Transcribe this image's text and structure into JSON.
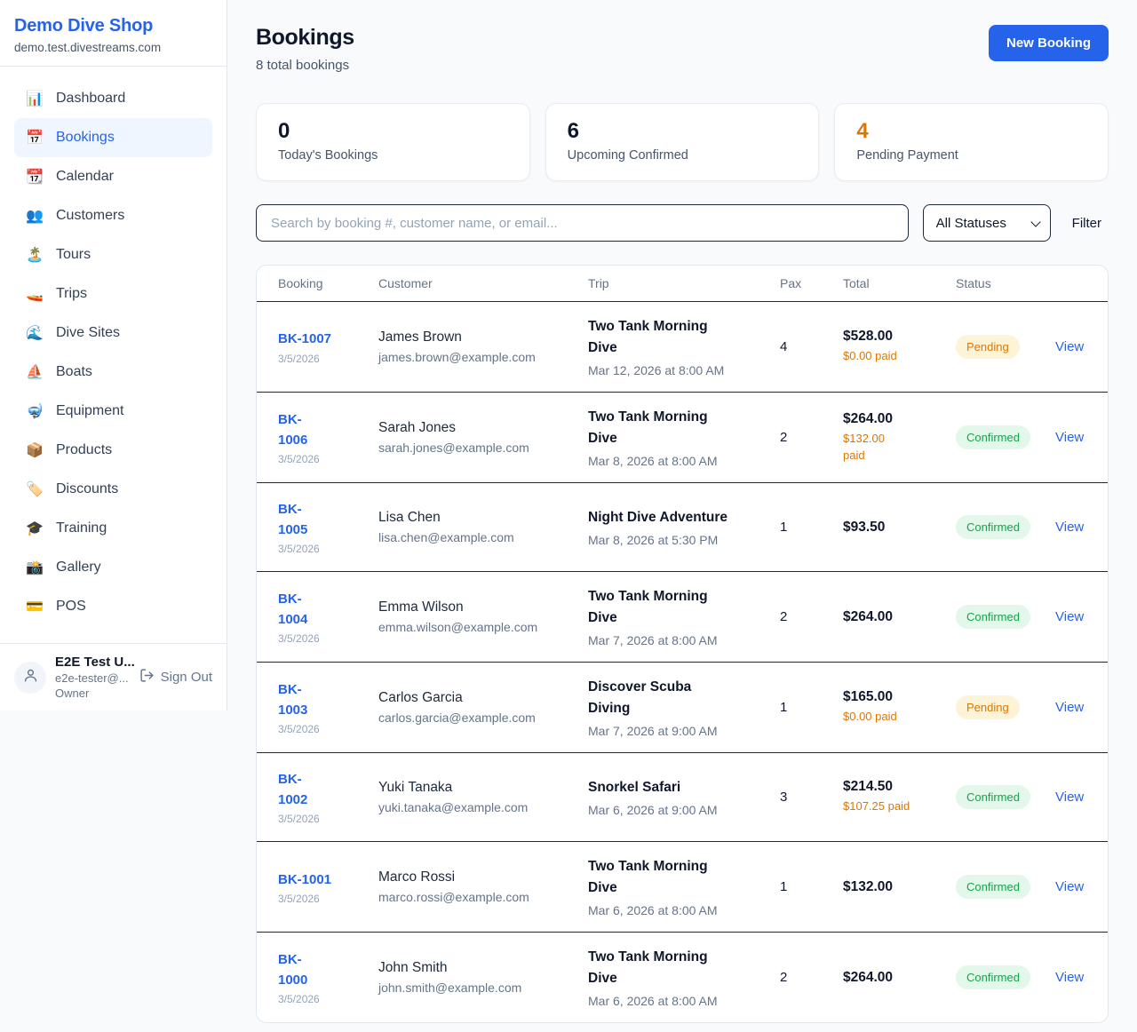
{
  "brand": {
    "name": "Demo Dive Shop",
    "domain": "demo.test.divestreams.com"
  },
  "sidebar": {
    "items": [
      {
        "label": "Dashboard",
        "icon": "bar-chart-icon",
        "glyph": "📊",
        "active": false
      },
      {
        "label": "Bookings",
        "icon": "calendar-icon",
        "glyph": "📅",
        "active": true
      },
      {
        "label": "Calendar",
        "icon": "tear-off-calendar-icon",
        "glyph": "📆",
        "active": false
      },
      {
        "label": "Customers",
        "icon": "people-icon",
        "glyph": "👥",
        "active": false
      },
      {
        "label": "Tours",
        "icon": "island-icon",
        "glyph": "🏝️",
        "active": false
      },
      {
        "label": "Trips",
        "icon": "speedboat-icon",
        "glyph": "🚤",
        "active": false
      },
      {
        "label": "Dive Sites",
        "icon": "wave-icon",
        "glyph": "🌊",
        "active": false
      },
      {
        "label": "Boats",
        "icon": "sailboat-icon",
        "glyph": "⛵",
        "active": false
      },
      {
        "label": "Equipment",
        "icon": "diving-mask-icon",
        "glyph": "🤿",
        "active": false
      },
      {
        "label": "Products",
        "icon": "package-icon",
        "glyph": "📦",
        "active": false
      },
      {
        "label": "Discounts",
        "icon": "tag-icon",
        "glyph": "🏷️",
        "active": false
      },
      {
        "label": "Training",
        "icon": "graduation-cap-icon",
        "glyph": "🎓",
        "active": false
      },
      {
        "label": "Gallery",
        "icon": "camera-flash-icon",
        "glyph": "📸",
        "active": false
      },
      {
        "label": "POS",
        "icon": "credit-card-icon",
        "glyph": "💳",
        "active": false
      }
    ],
    "user": {
      "name": "E2E Test U...",
      "email": "e2e-tester@...",
      "role": "Owner",
      "signout_label": "Sign Out"
    }
  },
  "header": {
    "title": "Bookings",
    "subtitle": "8 total bookings",
    "new_booking_label": "New Booking"
  },
  "stats": [
    {
      "value": "0",
      "label": "Today's Bookings",
      "color": "#0f172a"
    },
    {
      "value": "6",
      "label": "Upcoming Confirmed",
      "color": "#0f172a"
    },
    {
      "value": "4",
      "label": "Pending Payment",
      "color": "#d97706"
    }
  ],
  "filters": {
    "search_placeholder": "Search by booking #, customer name, or email...",
    "status_selected": "All Statuses",
    "filter_label": "Filter"
  },
  "table": {
    "columns": [
      "Booking",
      "Customer",
      "Trip",
      "Pax",
      "Total",
      "Status"
    ],
    "view_label": "View",
    "rows": [
      {
        "id": "BK-1007",
        "id_display": "BK-1007",
        "date": "3/5/2026",
        "customer": "James Brown",
        "email": "james.brown@example.com",
        "trip": "Two Tank Morning Dive",
        "trip_display": "Two Tank Morning\nDive",
        "trip_date": "Mar 12, 2026 at 8:00 AM",
        "pax": "4",
        "total": "$528.00",
        "paid": "$0.00 paid",
        "paid_display": "$0.00 paid",
        "status": "Pending"
      },
      {
        "id": "BK-1006",
        "id_display": "BK-\n1006",
        "date": "3/5/2026",
        "customer": "Sarah Jones",
        "email": "sarah.jones@example.com",
        "trip": "Two Tank Morning Dive",
        "trip_display": "Two Tank Morning\nDive",
        "trip_date": "Mar 8, 2026 at 8:00 AM",
        "pax": "2",
        "total": "$264.00",
        "paid": "$132.00 paid",
        "paid_display": "$132.00\npaid",
        "status": "Confirmed"
      },
      {
        "id": "BK-1005",
        "id_display": "BK-\n1005",
        "date": "3/5/2026",
        "customer": "Lisa Chen",
        "email": "lisa.chen@example.com",
        "trip": "Night Dive Adventure",
        "trip_display": "Night Dive Adventure",
        "trip_date": "Mar 8, 2026 at 5:30 PM",
        "pax": "1",
        "total": "$93.50",
        "paid": "",
        "paid_display": "",
        "status": "Confirmed"
      },
      {
        "id": "BK-1004",
        "id_display": "BK-\n1004",
        "date": "3/5/2026",
        "customer": "Emma Wilson",
        "email": "emma.wilson@example.com",
        "trip": "Two Tank Morning Dive",
        "trip_display": "Two Tank Morning\nDive",
        "trip_date": "Mar 7, 2026 at 8:00 AM",
        "pax": "2",
        "total": "$264.00",
        "paid": "",
        "paid_display": "",
        "status": "Confirmed"
      },
      {
        "id": "BK-1003",
        "id_display": "BK-\n1003",
        "date": "3/5/2026",
        "customer": "Carlos Garcia",
        "email": "carlos.garcia@example.com",
        "trip": "Discover Scuba Diving",
        "trip_display": "Discover Scuba\nDiving",
        "trip_date": "Mar 7, 2026 at 9:00 AM",
        "pax": "1",
        "total": "$165.00",
        "paid": "$0.00 paid",
        "paid_display": "$0.00 paid",
        "status": "Pending"
      },
      {
        "id": "BK-1002",
        "id_display": "BK-\n1002",
        "date": "3/5/2026",
        "customer": "Yuki Tanaka",
        "email": "yuki.tanaka@example.com",
        "trip": "Snorkel Safari",
        "trip_display": "Snorkel Safari",
        "trip_date": "Mar 6, 2026 at 9:00 AM",
        "pax": "3",
        "total": "$214.50",
        "paid": "$107.25 paid",
        "paid_display": "$107.25 paid",
        "status": "Confirmed"
      },
      {
        "id": "BK-1001",
        "id_display": "BK-1001",
        "date": "3/5/2026",
        "customer": "Marco Rossi",
        "email": "marco.rossi@example.com",
        "trip": "Two Tank Morning Dive",
        "trip_display": "Two Tank Morning\nDive",
        "trip_date": "Mar 6, 2026 at 8:00 AM",
        "pax": "1",
        "total": "$132.00",
        "paid": "",
        "paid_display": "",
        "status": "Confirmed"
      },
      {
        "id": "BK-1000",
        "id_display": "BK-\n1000",
        "date": "3/5/2026",
        "customer": "John Smith",
        "email": "john.smith@example.com",
        "trip": "Two Tank Morning Dive",
        "trip_display": "Two Tank Morning\nDive",
        "trip_date": "Mar 6, 2026 at 8:00 AM",
        "pax": "2",
        "total": "$264.00",
        "paid": "",
        "paid_display": "",
        "status": "Confirmed"
      }
    ]
  },
  "colors": {
    "accent": "#2563eb",
    "pending_text": "#d97706",
    "pending_bg": "#fdf3d7",
    "confirmed_text": "#16a34a",
    "confirmed_bg": "#e3f8ea",
    "page_bg": "#f8fafc"
  }
}
